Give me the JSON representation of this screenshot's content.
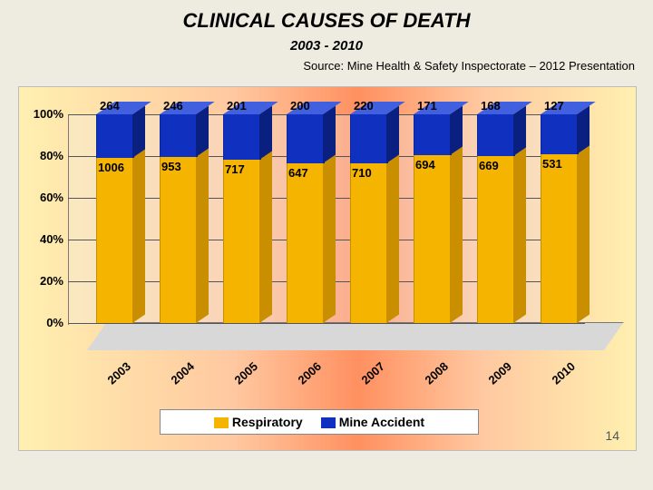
{
  "title": "CLINICAL CAUSES OF DEATH",
  "subtitle": "2003 - 2010",
  "source": "Source: Mine Health & Safety Inspectorate – 2012 Presentation",
  "page_number": "14",
  "chart": {
    "type": "stacked-bar-100pct-3d",
    "categories": [
      "2003",
      "2004",
      "2005",
      "2006",
      "2007",
      "2008",
      "2009",
      "2010"
    ],
    "series": [
      {
        "name": "Respiratory",
        "color_front": "#f4b400",
        "color_side": "#c98f00",
        "values": [
          1006,
          953,
          717,
          647,
          710,
          694,
          669,
          531
        ]
      },
      {
        "name": "Mine Accident",
        "color_front": "#1030c0",
        "color_side": "#0a2080",
        "color_top": "#4060e0",
        "values": [
          264,
          246,
          201,
          200,
          220,
          171,
          168,
          127
        ]
      }
    ],
    "y_axis": {
      "ticks": [
        "0%",
        "20%",
        "40%",
        "60%",
        "80%",
        "100%"
      ],
      "label_fontsize": 13,
      "label_fontweight": "bold"
    },
    "x_axis": {
      "label_rotation_deg": -42,
      "label_fontsize": 13,
      "label_fontweight": "bold"
    },
    "value_label_fontsize": 13,
    "value_label_fontweight": "bold",
    "background_gradient": [
      "#fff0b0",
      "#ffc8a0",
      "#ff9060",
      "#ffc8a0",
      "#fff0b0"
    ],
    "plot_floor_color": "#d8d8d8",
    "grid_color": "#555555",
    "legend": {
      "items": [
        "Respiratory",
        "Mine Accident"
      ],
      "background": "#ffffff",
      "border": "#888888",
      "fontsize": 14,
      "fontweight": "bold"
    }
  },
  "slide_background": "#eeece0",
  "title_fontsize": 22,
  "title_fontweight": "bold",
  "title_fontstyle": "italic",
  "subtitle_fontsize": 15,
  "source_fontsize": 13
}
